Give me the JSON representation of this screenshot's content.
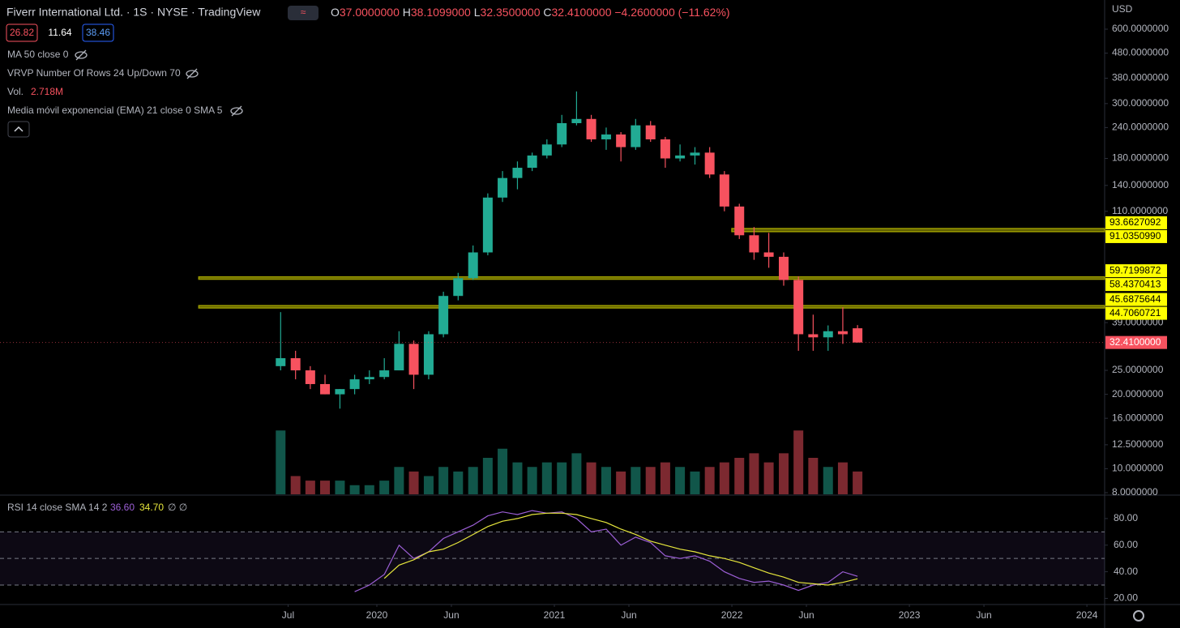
{
  "header": {
    "title": "Fiverr International Ltd. · 1S · NYSE · TradingView",
    "ohlc": [
      {
        "k": "O",
        "v": "37.0000000"
      },
      {
        "k": "H",
        "v": "38.1099000"
      },
      {
        "k": "L",
        "v": "32.3500000"
      },
      {
        "k": "C",
        "v": "32.4100000"
      }
    ],
    "change": "−4.2600000 (−11.62%)",
    "bid": "26.82",
    "spread": "11.64",
    "ask": "38.46",
    "currency": "USD"
  },
  "legend": {
    "ma": "MA 50 close 0",
    "vrvp": "VRVP Number Of Rows 24 Up/Down 70",
    "vol": "Vol.",
    "vol_value": "2.718M",
    "ema": "Media móvil exponencial (EMA) 21 close 0 SMA 5"
  },
  "chart_data": {
    "type": "candlestick",
    "log_scale": true,
    "grid": false,
    "up_color": "#22ab94",
    "down_color": "#f7525f",
    "x": [
      2019.458,
      2019.542,
      2019.625,
      2019.708,
      2019.792,
      2019.875,
      2019.958,
      2020.042,
      2020.125,
      2020.208,
      2020.292,
      2020.375,
      2020.458,
      2020.542,
      2020.625,
      2020.708,
      2020.792,
      2020.875,
      2020.958,
      2021.042,
      2021.125,
      2021.208,
      2021.292,
      2021.375,
      2021.458,
      2021.542,
      2021.625,
      2021.708,
      2021.792,
      2021.875,
      2021.958,
      2022.042,
      2022.125,
      2022.208,
      2022.292,
      2022.375,
      2022.458,
      2022.542,
      2022.625,
      2022.708
    ],
    "ohlc": [
      [
        26,
        43,
        25,
        28
      ],
      [
        28,
        30,
        23,
        25
      ],
      [
        25,
        26,
        21,
        22
      ],
      [
        22,
        24,
        20,
        20
      ],
      [
        20,
        21,
        17.5,
        21
      ],
      [
        21,
        24,
        20,
        23
      ],
      [
        23,
        25,
        22,
        23.5
      ],
      [
        23.5,
        28,
        23,
        25
      ],
      [
        25,
        36,
        25,
        32
      ],
      [
        32,
        33,
        21,
        24
      ],
      [
        24,
        36,
        23,
        35
      ],
      [
        35,
        52,
        34,
        50
      ],
      [
        50,
        62,
        48,
        59
      ],
      [
        59,
        80,
        58,
        75
      ],
      [
        75,
        130,
        73,
        125
      ],
      [
        125,
        160,
        120,
        150
      ],
      [
        150,
        175,
        135,
        165
      ],
      [
        165,
        190,
        160,
        185
      ],
      [
        185,
        215,
        180,
        205
      ],
      [
        205,
        270,
        200,
        250
      ],
      [
        250,
        336,
        245,
        260
      ],
      [
        260,
        270,
        210,
        215
      ],
      [
        215,
        240,
        195,
        225
      ],
      [
        225,
        230,
        175,
        200
      ],
      [
        200,
        260,
        195,
        245
      ],
      [
        245,
        255,
        210,
        215
      ],
      [
        215,
        220,
        165,
        180
      ],
      [
        180,
        205,
        175,
        185
      ],
      [
        185,
        200,
        170,
        190
      ],
      [
        190,
        200,
        150,
        155
      ],
      [
        155,
        160,
        110,
        115
      ],
      [
        115,
        118,
        85,
        88
      ],
      [
        88,
        95,
        70,
        75
      ],
      [
        75,
        90,
        65,
        72
      ],
      [
        72,
        75,
        55,
        58
      ],
      [
        58,
        60,
        30,
        35
      ],
      [
        35,
        42,
        30,
        34
      ],
      [
        34,
        38,
        30,
        36
      ],
      [
        36,
        45,
        32,
        35
      ],
      [
        37,
        38.1099,
        32.35,
        32.41
      ]
    ],
    "volume": [
      14,
      4,
      3,
      3,
      3,
      2,
      2,
      3,
      6,
      5,
      4,
      6,
      5,
      6,
      8,
      10,
      7,
      6,
      7,
      7,
      9,
      7,
      6,
      5,
      6,
      6,
      7,
      6,
      5,
      6,
      7,
      8,
      9,
      7,
      9,
      14,
      8,
      6,
      7,
      5
    ],
    "volume_lim": [
      0,
      16
    ],
    "ylim": [
      8,
      600
    ],
    "yticks": [
      {
        "value": 600,
        "label": "600.0000000"
      },
      {
        "value": 480,
        "label": "480.0000000"
      },
      {
        "value": 380,
        "label": "380.0000000"
      },
      {
        "value": 300,
        "label": "300.0000000"
      },
      {
        "value": 240,
        "label": "240.0000000"
      },
      {
        "value": 180,
        "label": "180.0000000"
      },
      {
        "value": 140,
        "label": "140.0000000"
      },
      {
        "value": 110,
        "label": "110.0000000"
      },
      {
        "value": 39,
        "label": "39.0000000"
      },
      {
        "value": 25,
        "label": "25.0000000"
      },
      {
        "value": 20,
        "label": "20.0000000"
      },
      {
        "value": 16,
        "label": "16.0000000"
      },
      {
        "value": 12.5,
        "label": "12.5000000"
      },
      {
        "value": 10,
        "label": "10.0000000"
      },
      {
        "value": 8,
        "label": "8.0000000"
      }
    ],
    "levels": [
      {
        "hi": {
          "value": 93.6627092,
          "label": "93.6627092"
        },
        "lo": {
          "value": 91.035099,
          "label": "91.0350990"
        },
        "from": 2022.0
      },
      {
        "hi": {
          "value": 59.7199872,
          "label": "59.7199872"
        },
        "lo": {
          "value": 58.4370413,
          "label": "58.4370413"
        },
        "from": 2018.997
      },
      {
        "hi": {
          "value": 45.6875644,
          "label": "45.6875644"
        },
        "lo": {
          "value": 44.7060721,
          "label": "44.7060721"
        },
        "from": 2018.997
      }
    ],
    "level_color": "#9c9c00",
    "last": {
      "value": 32.41,
      "label": "32.4100000"
    },
    "xlim": [
      2017.877,
      2024.1
    ],
    "xticks": [
      {
        "value": 2019.5,
        "label": "Jul"
      },
      2020,
      {
        "value": 2020.42,
        "label": "Jun"
      },
      2021,
      {
        "value": 2021.42,
        "label": "Jun"
      },
      2022,
      {
        "value": 2022.42,
        "label": "Jun"
      },
      2023,
      {
        "value": 2023.42,
        "label": "Jun"
      },
      2024
    ],
    "rsi": {
      "label": "RSI 14 close SMA 14 2",
      "rsi_value": "36.60",
      "sma_value": "34.70",
      "extra": "∅ ∅",
      "color": "#9c5fd6",
      "sma_color": "#e6e63c",
      "x": [
        2019.875,
        2019.958,
        2020.042,
        2020.125,
        2020.208,
        2020.292,
        2020.375,
        2020.458,
        2020.542,
        2020.625,
        2020.708,
        2020.792,
        2020.875,
        2020.958,
        2021.042,
        2021.125,
        2021.208,
        2021.292,
        2021.375,
        2021.458,
        2021.542,
        2021.625,
        2021.708,
        2021.792,
        2021.875,
        2021.958,
        2022.042,
        2022.125,
        2022.208,
        2022.292,
        2022.375,
        2022.458,
        2022.542,
        2022.625,
        2022.708
      ],
      "values": [
        25,
        30,
        38,
        60,
        50,
        55,
        65,
        70,
        75,
        82,
        85,
        83,
        86,
        84,
        85,
        80,
        70,
        72,
        60,
        66,
        62,
        52,
        50,
        52,
        48,
        40,
        35,
        32,
        33,
        30,
        26,
        30,
        32,
        40,
        36.6
      ],
      "sma": [
        null,
        null,
        35,
        45,
        49,
        55,
        57,
        62,
        68,
        74,
        78,
        80,
        83,
        84,
        84,
        83,
        80,
        77,
        72,
        68,
        63,
        60,
        57,
        55,
        52,
        50,
        47,
        43,
        39,
        36,
        32,
        31,
        30,
        32,
        34.7
      ],
      "ylim": [
        16,
        97
      ],
      "yticks": [
        {
          "value": 80,
          "label": "80.00"
        },
        {
          "value": 60,
          "label": "60.00"
        },
        {
          "value": 40,
          "label": "40.00"
        },
        {
          "value": 20,
          "label": "20.00"
        }
      ],
      "bands": [
        70,
        50,
        30
      ]
    }
  }
}
